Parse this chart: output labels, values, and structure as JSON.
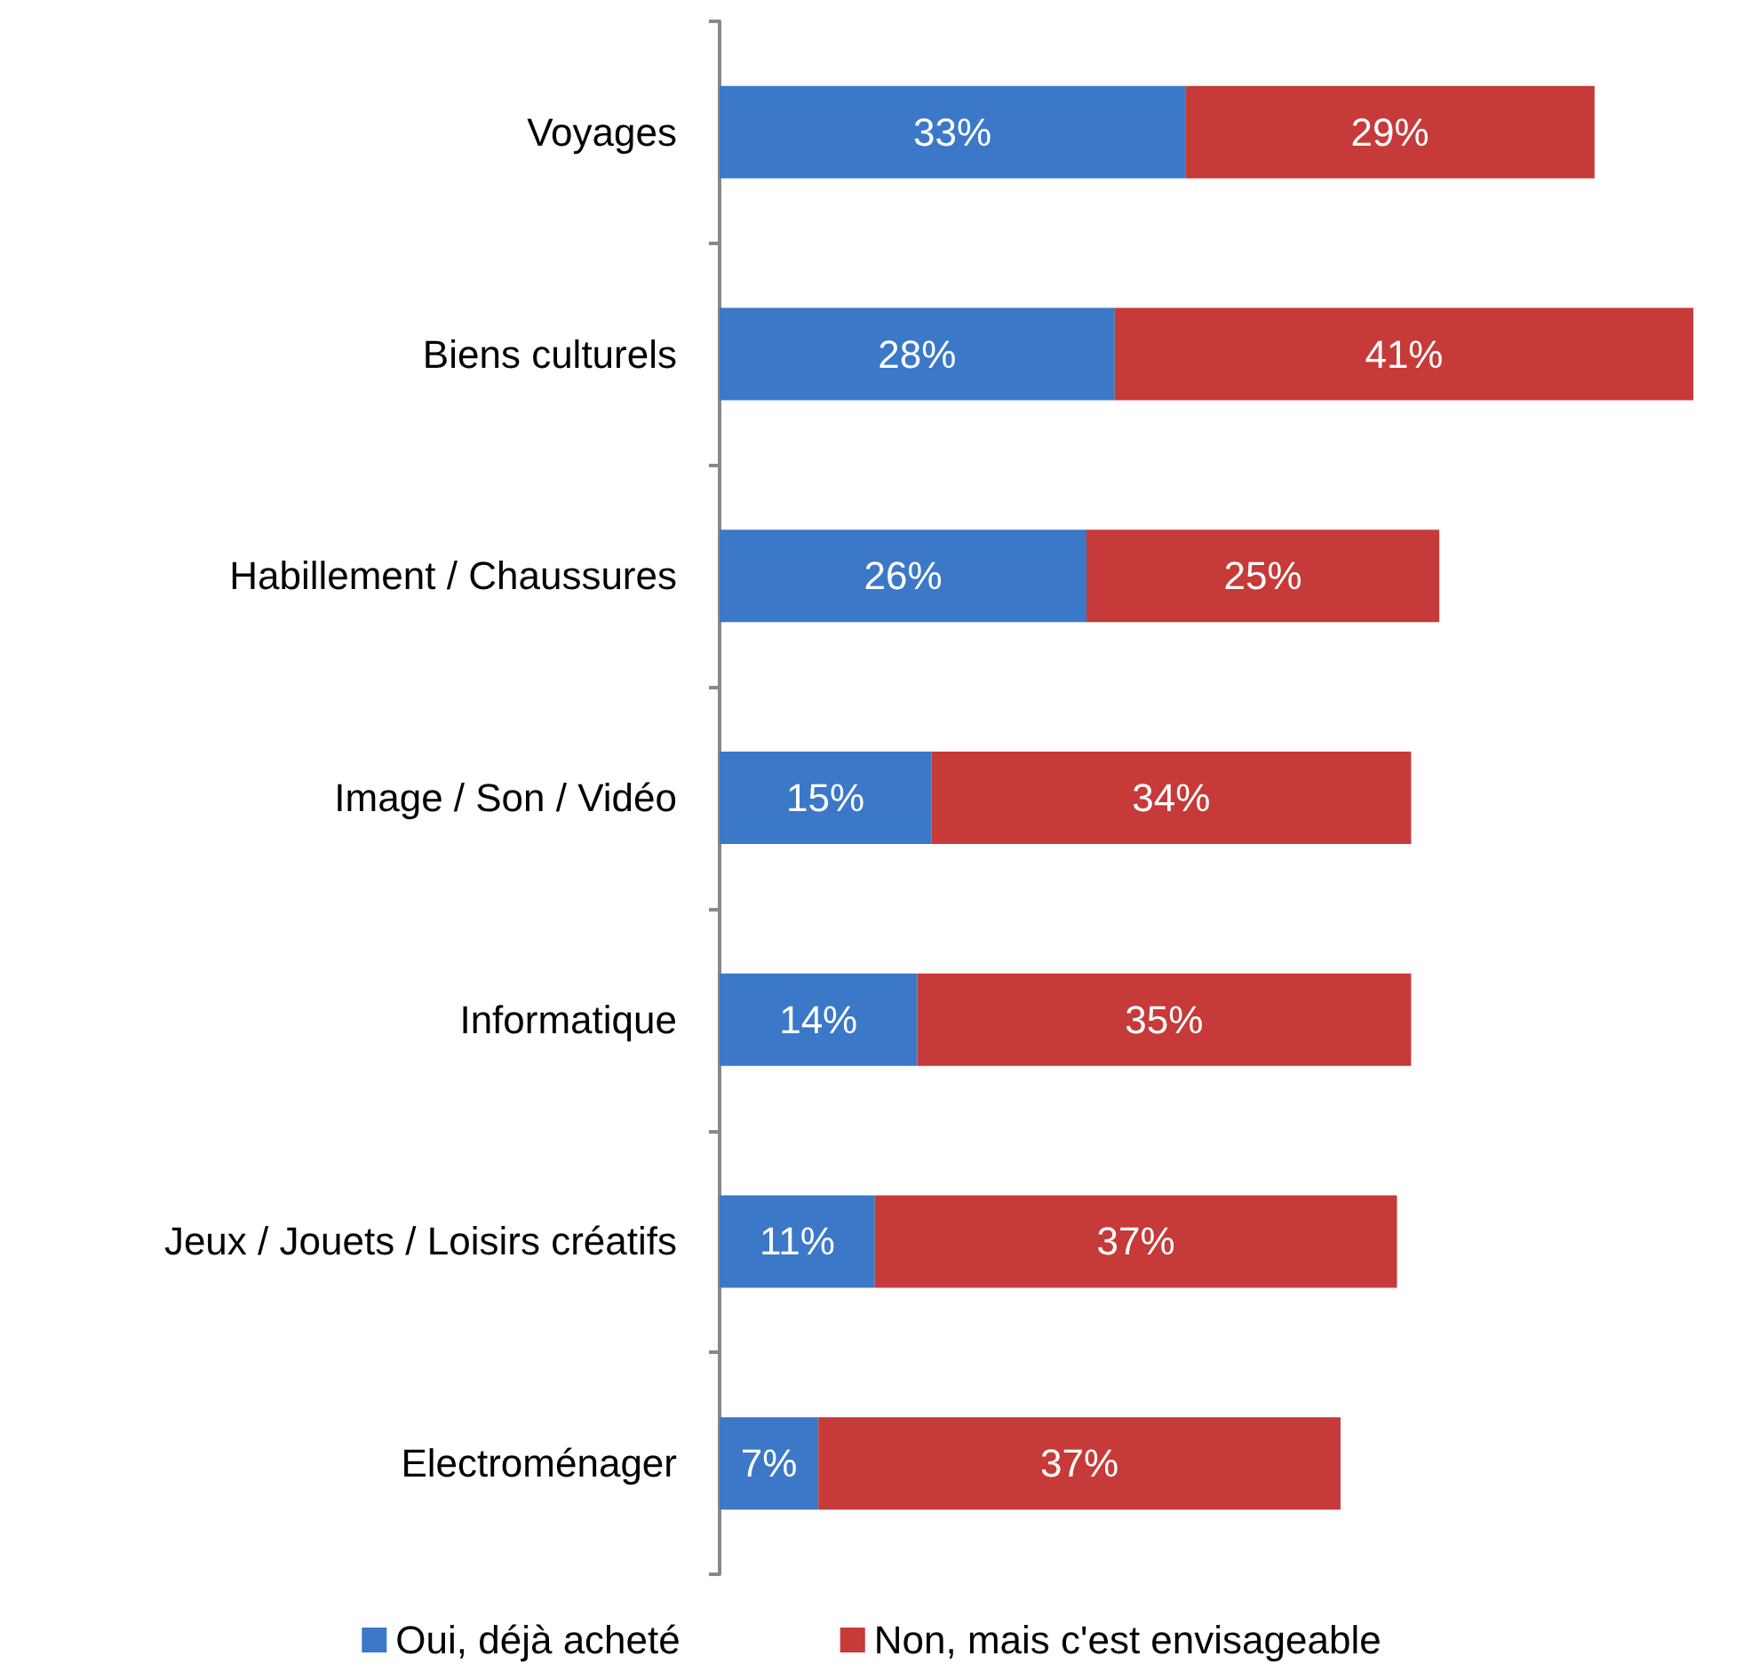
{
  "chart_data": {
    "type": "bar",
    "orientation": "horizontal",
    "stacked": true,
    "tick_labels": "y",
    "legend": "bottom",
    "categories": [
      "Voyages",
      "Biens culturels",
      "Habillement / Chaussures",
      "Image / Son / Vidéo",
      "Informatique",
      "Jeux / Jouets / Loisirs créatifs",
      "Electroménager"
    ],
    "series": [
      {
        "name": "Oui, déjà acheté",
        "color": "#3b78c8",
        "values": [
          33,
          28,
          26,
          15,
          14,
          11,
          7
        ],
        "value_labels": [
          "33%",
          "28%",
          "26%",
          "15%",
          "14%",
          "11%",
          "7%"
        ]
      },
      {
        "name": "Non, mais c'est envisageable",
        "color": "#c63a39",
        "values": [
          29,
          41,
          25,
          34,
          35,
          37,
          37
        ],
        "value_labels": [
          "29%",
          "41%",
          "25%",
          "34%",
          "35%",
          "37%",
          "37%"
        ]
      }
    ]
  }
}
